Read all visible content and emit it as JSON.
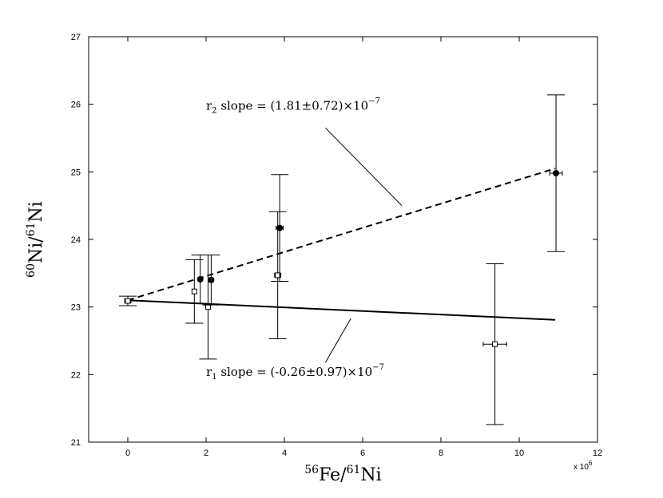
{
  "chart_data": {
    "type": "scatter",
    "xlim": [
      -1000000,
      12000000
    ],
    "ylim": [
      21,
      27
    ],
    "x_ticks": [
      0,
      2000000,
      4000000,
      6000000,
      8000000,
      10000000,
      12000000
    ],
    "x_tick_labels": [
      "0",
      "2",
      "4",
      "6",
      "8",
      "10",
      "12"
    ],
    "y_ticks": [
      21,
      22,
      23,
      24,
      25,
      26,
      27
    ],
    "y_tick_labels": [
      "21",
      "22",
      "23",
      "24",
      "25",
      "26",
      "27"
    ],
    "x_multiplier": {
      "base": "x 10",
      "exp": "6"
    },
    "xlabel": {
      "pre": "",
      "sup1": "56",
      "mid": "Fe/",
      "sup2": "61",
      "post": "Ni"
    },
    "ylabel": {
      "pre": "",
      "sup1": "60",
      "mid": "Ni/",
      "sup2": "61",
      "post": "Ni"
    },
    "grid": false,
    "legend": "none",
    "series": [
      {
        "marker": "open-square",
        "points": [
          {
            "x": 0,
            "y": 23.09,
            "yerr": 0.07,
            "xerr": 80000
          },
          {
            "x": 1700000,
            "y": 23.23,
            "yerr": 0.47,
            "xerr": 50000
          },
          {
            "x": 2050000,
            "y": 23.0,
            "yerr": 0.77,
            "xerr": 60000
          },
          {
            "x": 3830000,
            "y": 23.47,
            "yerr": 0.94,
            "xerr": 80000
          },
          {
            "x": 9380000,
            "y": 22.45,
            "yerr": 1.19,
            "xerr": 300000
          }
        ]
      },
      {
        "marker": "filled-circle",
        "points": [
          {
            "x": 1850000,
            "y": 23.41,
            "yerr": 0.36,
            "xerr": 50000
          },
          {
            "x": 2130000,
            "y": 23.4,
            "yerr": 0.37,
            "xerr": 60000
          },
          {
            "x": 3880000,
            "y": 24.17,
            "yerr": 0.79,
            "xerr": 90000
          },
          {
            "x": 10940000,
            "y": 24.98,
            "yerr": 1.16,
            "xerr": 160000
          }
        ]
      }
    ],
    "fits": [
      {
        "style": "solid",
        "x": [
          0,
          10920000
        ],
        "y": [
          23.1,
          22.81
        ]
      },
      {
        "style": "dashed",
        "x": [
          0,
          10920000
        ],
        "y": [
          23.1,
          25.05
        ]
      }
    ],
    "annotations": [
      {
        "id": "r2",
        "text_pre": "r",
        "text_sub": "2",
        "text_main": " slope = (1.81±0.72)×10",
        "text_sup": "−7",
        "anchor": {
          "x": 2000000,
          "y": 25.92
        },
        "pointer_from": {
          "x": 5050000,
          "y": 25.65
        },
        "pointer_to": {
          "x": 7000000,
          "y": 24.5
        }
      },
      {
        "id": "r1",
        "text_pre": "r",
        "text_sub": "1",
        "text_main": " slope = (-0.26±0.97)×10",
        "text_sup": "−7",
        "anchor": {
          "x": 2000000,
          "y": 21.98
        },
        "pointer_from": {
          "x": 5050000,
          "y": 22.18
        },
        "pointer_to": {
          "x": 5700000,
          "y": 22.83
        }
      }
    ]
  }
}
